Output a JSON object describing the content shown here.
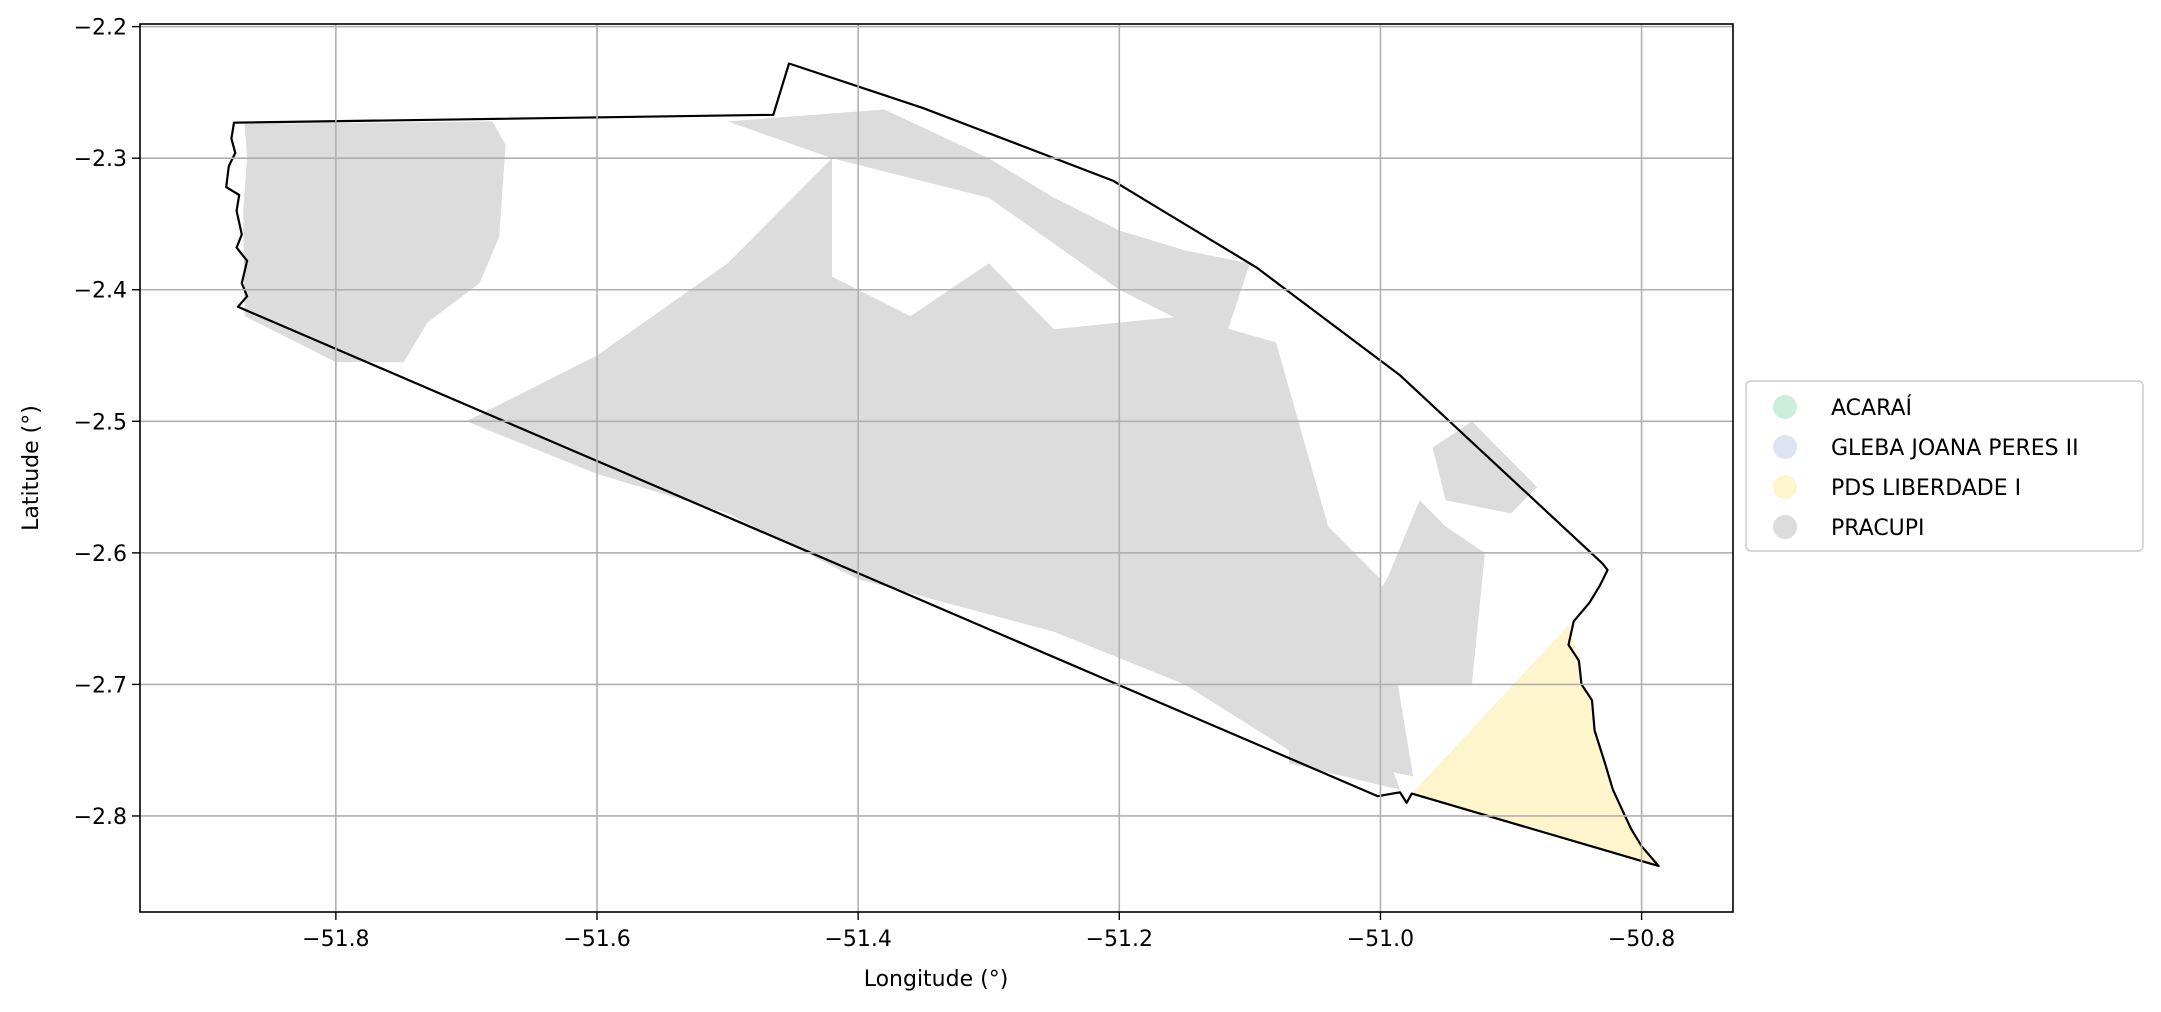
{
  "chart_data": {
    "type": "map",
    "xlabel": "Longitude (°)",
    "ylabel": "Latitude (°)",
    "xlim": [
      -51.95,
      -50.73
    ],
    "ylim": [
      -2.873,
      -2.198
    ],
    "grid": true,
    "x_ticks": [
      {
        "value": -51.8,
        "label": "−51.8"
      },
      {
        "value": -51.6,
        "label": "−51.6"
      },
      {
        "value": -51.4,
        "label": "−51.4"
      },
      {
        "value": -51.2,
        "label": "−51.2"
      },
      {
        "value": -51.0,
        "label": "−51.0"
      },
      {
        "value": -50.8,
        "label": "−50.8"
      }
    ],
    "y_ticks": [
      {
        "value": -2.2,
        "label": "−2.2"
      },
      {
        "value": -2.3,
        "label": "−2.3"
      },
      {
        "value": -2.4,
        "label": "−2.4"
      },
      {
        "value": -2.5,
        "label": "−2.5"
      },
      {
        "value": -2.6,
        "label": "−2.6"
      },
      {
        "value": -2.7,
        "label": "−2.7"
      },
      {
        "value": -2.8,
        "label": "−2.8"
      }
    ],
    "legend_position": "center-right",
    "legend": [
      {
        "label": "ACARAÍ",
        "color": "#cdeedd"
      },
      {
        "label": "GLEBA JOANA PERES II",
        "color": "#dde3f0"
      },
      {
        "label": "PDS LIBERDADE I",
        "color": "#fff5cc"
      },
      {
        "label": "PRACUPI",
        "color": "#dcdcdc"
      }
    ],
    "boundary": {
      "color": "#000000",
      "coords": [
        [
          -51.878,
          -2.273
        ],
        [
          -51.465,
          -2.267
        ],
        [
          -51.453,
          -2.228
        ],
        [
          -51.35,
          -2.262
        ],
        [
          -51.205,
          -2.317
        ],
        [
          -51.095,
          -2.383
        ],
        [
          -50.985,
          -2.465
        ],
        [
          -50.83,
          -2.608
        ],
        [
          -50.826,
          -2.613
        ],
        [
          -50.832,
          -2.625
        ],
        [
          -50.84,
          -2.638
        ],
        [
          -50.852,
          -2.652
        ],
        [
          -50.856,
          -2.67
        ],
        [
          -50.848,
          -2.682
        ],
        [
          -50.846,
          -2.7
        ],
        [
          -50.838,
          -2.712
        ],
        [
          -50.836,
          -2.735
        ],
        [
          -50.828,
          -2.76
        ],
        [
          -50.822,
          -2.78
        ],
        [
          -50.815,
          -2.795
        ],
        [
          -50.808,
          -2.81
        ],
        [
          -50.8,
          -2.823
        ],
        [
          -50.787,
          -2.838
        ],
        [
          -50.976,
          -2.783
        ],
        [
          -50.98,
          -2.79
        ],
        [
          -50.985,
          -2.782
        ],
        [
          -51.002,
          -2.785
        ],
        [
          -51.875,
          -2.413
        ],
        [
          -51.868,
          -2.405
        ],
        [
          -51.872,
          -2.395
        ],
        [
          -51.868,
          -2.378
        ],
        [
          -51.876,
          -2.368
        ],
        [
          -51.872,
          -2.358
        ],
        [
          -51.876,
          -2.34
        ],
        [
          -51.874,
          -2.328
        ],
        [
          -51.884,
          -2.322
        ],
        [
          -51.882,
          -2.306
        ],
        [
          -51.877,
          -2.296
        ],
        [
          -51.88,
          -2.285
        ],
        [
          -51.878,
          -2.273
        ]
      ]
    },
    "regions": [
      {
        "name": "PRACUPI",
        "color": "#dcdcdc",
        "polygons": [
          [
            [
              -51.87,
              -2.274
            ],
            [
              -51.68,
              -2.272
            ],
            [
              -51.67,
              -2.29
            ],
            [
              -51.675,
              -2.36
            ],
            [
              -51.69,
              -2.395
            ],
            [
              -51.73,
              -2.425
            ],
            [
              -51.748,
              -2.455
            ],
            [
              -51.8,
              -2.455
            ],
            [
              -51.84,
              -2.435
            ],
            [
              -51.87,
              -2.42
            ],
            [
              -51.871,
              -2.34
            ],
            [
              -51.868,
              -2.3
            ]
          ],
          [
            [
              -51.7,
              -2.5
            ],
            [
              -51.6,
              -2.45
            ],
            [
              -51.5,
              -2.38
            ],
            [
              -51.42,
              -2.3
            ],
            [
              -51.42,
              -2.39
            ],
            [
              -51.36,
              -2.42
            ],
            [
              -51.3,
              -2.38
            ],
            [
              -51.25,
              -2.43
            ],
            [
              -51.15,
              -2.42
            ],
            [
              -51.08,
              -2.44
            ],
            [
              -51.04,
              -2.58
            ],
            [
              -51.0,
              -2.62
            ],
            [
              -50.975,
              -2.77
            ],
            [
              -51.07,
              -2.75
            ],
            [
              -51.15,
              -2.7
            ],
            [
              -51.25,
              -2.66
            ],
            [
              -51.4,
              -2.62
            ],
            [
              -51.5,
              -2.57
            ],
            [
              -51.6,
              -2.54
            ]
          ],
          [
            [
              -51.5,
              -2.272
            ],
            [
              -51.38,
              -2.263
            ],
            [
              -51.3,
              -2.3
            ],
            [
              -51.25,
              -2.33
            ],
            [
              -51.2,
              -2.355
            ],
            [
              -51.15,
              -2.37
            ],
            [
              -51.1,
              -2.38
            ],
            [
              -51.12,
              -2.44
            ],
            [
              -51.2,
              -2.4
            ],
            [
              -51.3,
              -2.33
            ],
            [
              -51.42,
              -2.3
            ]
          ],
          [
            [
              -51.05,
              -2.7
            ],
            [
              -50.995,
              -2.62
            ],
            [
              -50.97,
              -2.56
            ],
            [
              -50.95,
              -2.58
            ],
            [
              -50.92,
              -2.6
            ],
            [
              -50.93,
              -2.7
            ]
          ],
          [
            [
              -51.07,
              -2.72
            ],
            [
              -51.07,
              -2.76
            ],
            [
              -50.985,
              -2.78
            ],
            [
              -51.0,
              -2.74
            ]
          ],
          [
            [
              -50.96,
              -2.52
            ],
            [
              -50.93,
              -2.5
            ],
            [
              -50.88,
              -2.55
            ],
            [
              -50.9,
              -2.57
            ],
            [
              -50.95,
              -2.56
            ]
          ]
        ]
      },
      {
        "name": "PDS LIBERDADE I",
        "color": "#fff5cc",
        "polygons": [
          [
            [
              -50.976,
              -2.783
            ],
            [
              -50.856,
              -2.655
            ],
            [
              -50.852,
              -2.668
            ],
            [
              -50.848,
              -2.682
            ],
            [
              -50.846,
              -2.7
            ],
            [
              -50.838,
              -2.712
            ],
            [
              -50.836,
              -2.735
            ],
            [
              -50.828,
              -2.76
            ],
            [
              -50.822,
              -2.78
            ],
            [
              -50.815,
              -2.795
            ],
            [
              -50.808,
              -2.81
            ],
            [
              -50.8,
              -2.823
            ],
            [
              -50.787,
              -2.838
            ]
          ]
        ]
      }
    ]
  }
}
